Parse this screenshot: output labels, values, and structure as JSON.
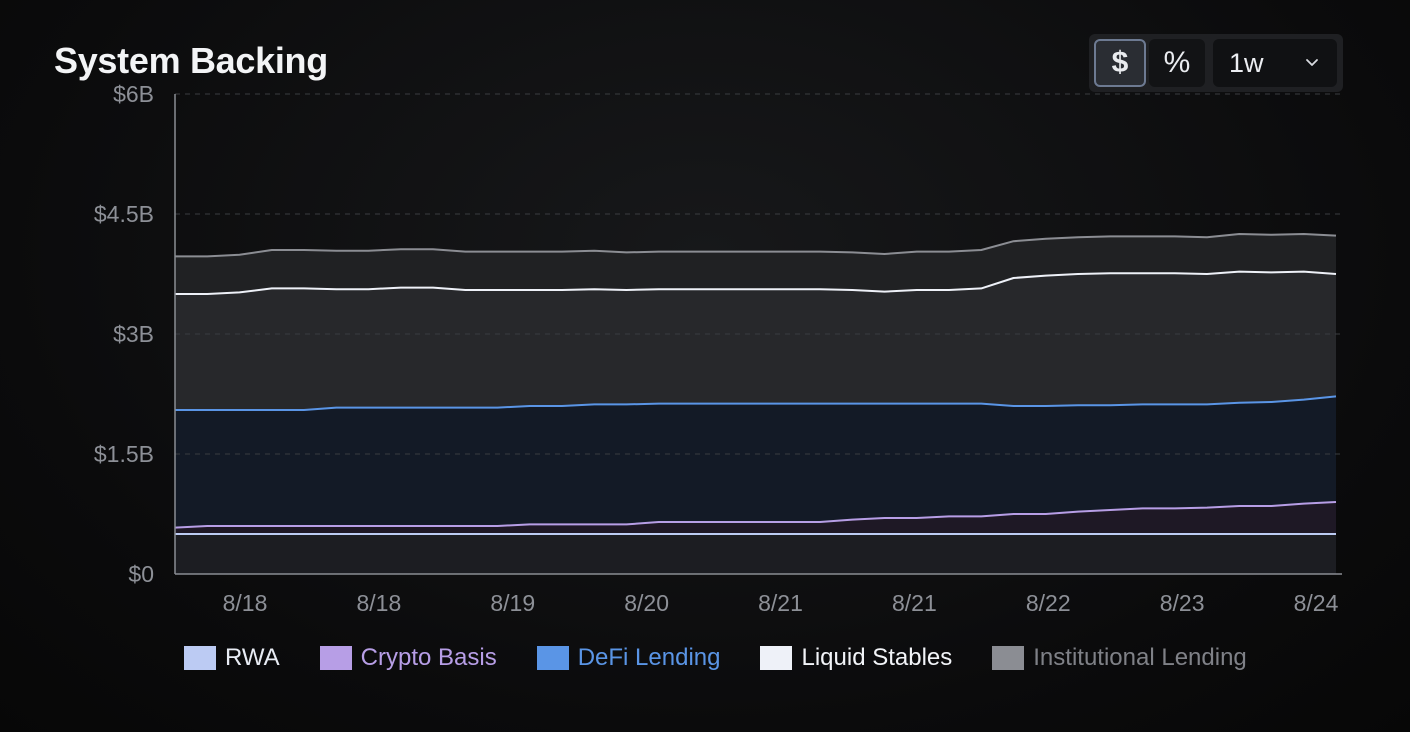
{
  "header": {
    "title": "System Backing"
  },
  "controls": {
    "dollar_label": "$",
    "percent_label": "%",
    "range_value": "1w"
  },
  "chart_data": {
    "type": "area",
    "title": "System Backing",
    "xlabel": "",
    "ylabel": "",
    "ylim": [
      0,
      6
    ],
    "y_unit": "billions USD",
    "y_ticks": [
      {
        "value": 0,
        "label": "$0"
      },
      {
        "value": 1.5,
        "label": "$1.5B"
      },
      {
        "value": 3,
        "label": "$3B"
      },
      {
        "value": 4.5,
        "label": "$4.5B"
      },
      {
        "value": 6,
        "label": "$6B"
      }
    ],
    "x_tick_labels": [
      "8/18",
      "8/18",
      "8/19",
      "8/20",
      "8/21",
      "8/21",
      "8/22",
      "8/23",
      "8/24"
    ],
    "stacked": true,
    "grid": true,
    "legend_position": "bottom",
    "x": [
      0,
      1,
      2,
      3,
      4,
      5,
      6,
      7,
      8,
      9,
      10,
      11,
      12,
      13,
      14,
      15,
      16,
      17,
      18,
      19,
      20,
      21,
      22,
      23,
      24,
      25,
      26,
      27,
      28,
      29,
      30,
      31,
      32,
      33,
      34,
      35,
      36
    ],
    "series": [
      {
        "name": "RWA",
        "color": "#bccbf3",
        "values": [
          0.5,
          0.5,
          0.5,
          0.5,
          0.5,
          0.5,
          0.5,
          0.5,
          0.5,
          0.5,
          0.5,
          0.5,
          0.5,
          0.5,
          0.5,
          0.5,
          0.5,
          0.5,
          0.5,
          0.5,
          0.5,
          0.5,
          0.5,
          0.5,
          0.5,
          0.5,
          0.5,
          0.5,
          0.5,
          0.5,
          0.5,
          0.5,
          0.5,
          0.5,
          0.5,
          0.5,
          0.5
        ]
      },
      {
        "name": "Crypto Basis",
        "color": "#b79ee6",
        "values": [
          0.08,
          0.1,
          0.1,
          0.1,
          0.1,
          0.1,
          0.1,
          0.1,
          0.1,
          0.1,
          0.1,
          0.12,
          0.12,
          0.12,
          0.12,
          0.15,
          0.15,
          0.15,
          0.15,
          0.15,
          0.15,
          0.18,
          0.2,
          0.2,
          0.22,
          0.22,
          0.25,
          0.25,
          0.28,
          0.3,
          0.32,
          0.32,
          0.33,
          0.35,
          0.35,
          0.38,
          0.4
        ]
      },
      {
        "name": "DeFi Lending",
        "color": "#5a95e6",
        "values": [
          1.47,
          1.45,
          1.45,
          1.45,
          1.45,
          1.48,
          1.48,
          1.48,
          1.48,
          1.48,
          1.48,
          1.48,
          1.48,
          1.5,
          1.5,
          1.48,
          1.48,
          1.48,
          1.48,
          1.48,
          1.48,
          1.45,
          1.43,
          1.43,
          1.41,
          1.41,
          1.35,
          1.35,
          1.33,
          1.31,
          1.3,
          1.3,
          1.29,
          1.29,
          1.3,
          1.3,
          1.32
        ]
      },
      {
        "name": "Liquid Stables",
        "color": "#eef1f8",
        "values": [
          1.45,
          1.45,
          1.47,
          1.52,
          1.52,
          1.48,
          1.48,
          1.5,
          1.5,
          1.47,
          1.47,
          1.45,
          1.45,
          1.44,
          1.43,
          1.43,
          1.43,
          1.43,
          1.43,
          1.43,
          1.43,
          1.42,
          1.4,
          1.42,
          1.42,
          1.44,
          1.6,
          1.63,
          1.64,
          1.65,
          1.64,
          1.64,
          1.63,
          1.64,
          1.62,
          1.6,
          1.53
        ]
      },
      {
        "name": "Institutional Lending",
        "color": "#8b8d93",
        "values": [
          0.47,
          0.47,
          0.47,
          0.48,
          0.48,
          0.48,
          0.48,
          0.48,
          0.48,
          0.48,
          0.48,
          0.48,
          0.48,
          0.48,
          0.47,
          0.47,
          0.47,
          0.47,
          0.47,
          0.47,
          0.47,
          0.47,
          0.47,
          0.48,
          0.48,
          0.48,
          0.46,
          0.46,
          0.46,
          0.46,
          0.46,
          0.46,
          0.46,
          0.47,
          0.47,
          0.47,
          0.48
        ]
      }
    ]
  }
}
